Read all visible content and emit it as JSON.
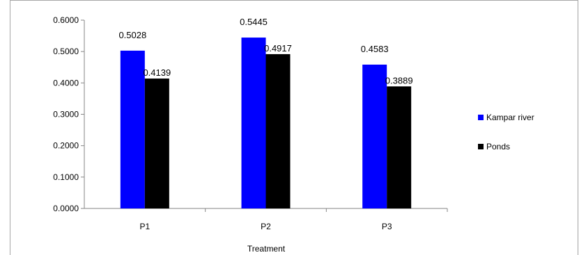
{
  "chart_data": {
    "type": "bar",
    "title": "",
    "xlabel": "Treatment",
    "ylabel": "",
    "categories": [
      "P1",
      "P2",
      "P3"
    ],
    "series": [
      {
        "name": "Kampar river",
        "values": [
          0.5028,
          0.5445,
          0.4583
        ],
        "labels": [
          "0.5028",
          "0.5445",
          "0.4583"
        ],
        "color": "#0000ff"
      },
      {
        "name": "Ponds",
        "values": [
          0.4139,
          0.4917,
          0.3889
        ],
        "labels": [
          "0.4139",
          "0.4917",
          "0.3889"
        ],
        "color": "#000000"
      }
    ],
    "ylim": [
      0,
      0.6
    ],
    "yticks": [
      "0.0000",
      "0.1000",
      "0.2000",
      "0.3000",
      "0.4000",
      "0.5000",
      "0.6000"
    ],
    "grid": false,
    "legend": "right"
  }
}
